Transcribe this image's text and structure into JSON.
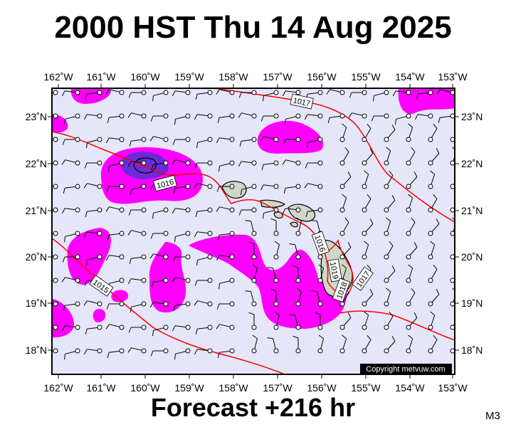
{
  "header": {
    "title": "2000 HST Thu 14 Aug 2025"
  },
  "footer": {
    "forecast_label": "Forecast +216 hr",
    "model_code": "M3"
  },
  "map": {
    "lon_labels": [
      "162˚W",
      "161˚W",
      "160˚W",
      "159˚W",
      "158˚W",
      "157˚W",
      "156˚W",
      "155˚W",
      "154˚W",
      "153˚W"
    ],
    "lat_labels": [
      "23˚N",
      "22˚N",
      "21˚N",
      "20˚N",
      "19˚N",
      "18˚N"
    ],
    "copyright": "Copyright metvuw.com",
    "isobar_labels": [
      "1017",
      "1016",
      "1016",
      "1015",
      "1019",
      "1018",
      "1017"
    ],
    "colors": {
      "background": "#e6e6fa",
      "precip_light": "#ff00ff",
      "precip_heavy": "#6a2bd9",
      "isobar": "#ff0000",
      "land": "#cfd8c8"
    }
  }
}
